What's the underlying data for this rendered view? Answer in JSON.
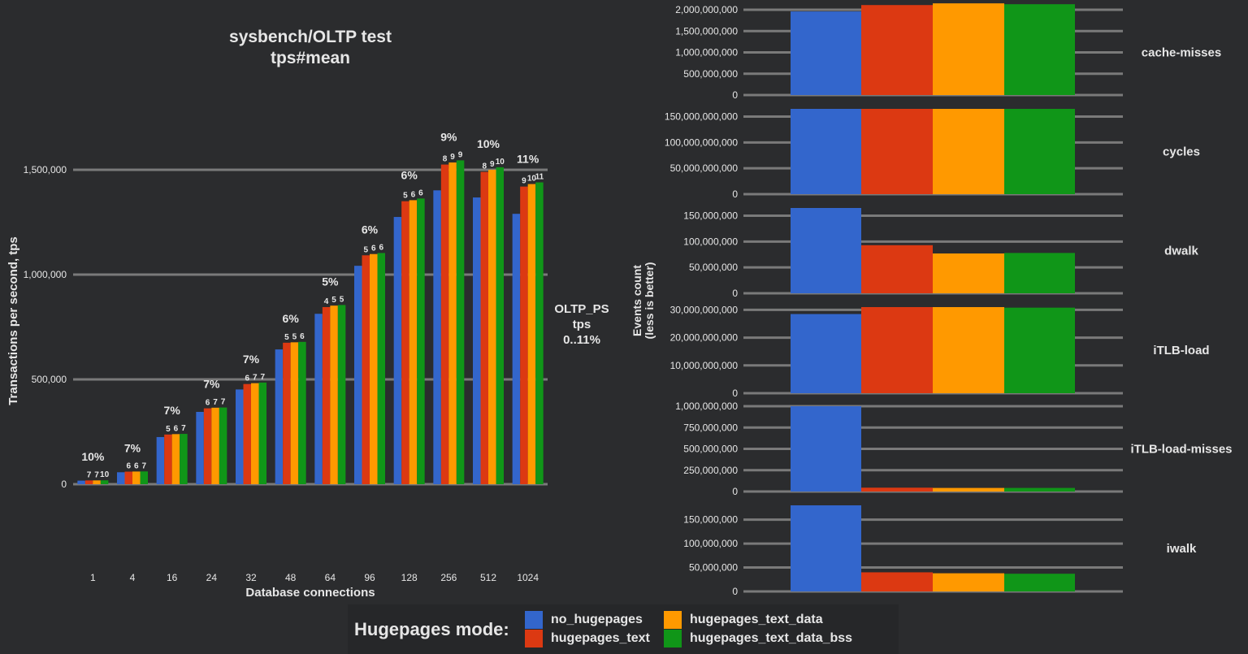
{
  "colors": {
    "background": "#2b2c2e",
    "grid": "#7a7a7a",
    "text": "#e6e6e6",
    "series": [
      "#3366cc",
      "#dc3912",
      "#ff9900",
      "#109618"
    ]
  },
  "legend": {
    "title": "Hugepages mode:",
    "items": [
      "no_hugepages",
      "hugepages_text",
      "hugepages_text_data",
      "hugepages_text_data_bss"
    ]
  },
  "chart_data": [
    {
      "type": "bar",
      "title": "sysbench/OLTP test",
      "subtitle": "tps#mean",
      "xlabel": "Database connections",
      "ylabel": "Transactions per second, tps",
      "ylim": [
        0,
        1750000
      ],
      "yticks": [
        0,
        500000,
        1000000,
        1500000
      ],
      "ytick_labels": [
        "0",
        "500,000",
        "1,000,000",
        "1,500,000"
      ],
      "facet_label": [
        "OLTP_PS",
        "tps",
        "0..11%"
      ],
      "categories": [
        "1",
        "4",
        "16",
        "24",
        "32",
        "48",
        "64",
        "96",
        "128",
        "256",
        "512",
        "1024"
      ],
      "group_labels": [
        "10%",
        "7%",
        "7%",
        "7%",
        "7%",
        "6%",
        "5%",
        "6%",
        "6%",
        "9%",
        "10%",
        "11%"
      ],
      "series": [
        {
          "name": "no_hugepages",
          "values": [
            17000,
            57000,
            225000,
            345000,
            452000,
            643000,
            813000,
            1042000,
            1275000,
            1402000,
            1368000,
            1290000
          ],
          "labels": [
            "",
            "",
            "",
            "",
            "",
            "",
            "",
            "",
            "",
            "",
            "",
            ""
          ]
        },
        {
          "name": "hugepages_text",
          "values": [
            18000,
            60000,
            237000,
            362000,
            478000,
            675000,
            845000,
            1092000,
            1350000,
            1525000,
            1490000,
            1420000
          ],
          "labels": [
            "7",
            "6",
            "5",
            "6",
            "6",
            "5",
            "4",
            "5",
            "5",
            "8",
            "8",
            "9"
          ]
        },
        {
          "name": "hugepages_text_data",
          "values": [
            18200,
            60500,
            239000,
            365000,
            482000,
            677000,
            852000,
            1098000,
            1355000,
            1535000,
            1500000,
            1432000
          ],
          "labels": [
            "7",
            "6",
            "6",
            "7",
            "7",
            "5",
            "5",
            "6",
            "6",
            "9",
            "9",
            "10"
          ]
        },
        {
          "name": "hugepages_text_data_bss",
          "values": [
            18500,
            61000,
            240000,
            366000,
            485000,
            679000,
            855000,
            1103000,
            1363000,
            1545000,
            1512000,
            1440000
          ],
          "labels": [
            "10",
            "7",
            "7",
            "7",
            "7",
            "6",
            "5",
            "6",
            "6",
            "9",
            "10",
            "11"
          ]
        }
      ]
    },
    {
      "type": "bar",
      "ylabel": "Events count\n(less is better)",
      "panels": [
        {
          "name": "cache-misses",
          "ylim": [
            0,
            2000000000
          ],
          "yticks": [
            0,
            500000000,
            1000000000,
            1500000000,
            2000000000
          ],
          "ytick_labels": [
            "0",
            "500,000,000",
            "1,000,000,000",
            "1,500,000,000",
            "2,000,000,000"
          ],
          "values": [
            1960000000,
            2110000000,
            2150000000,
            2130000000
          ]
        },
        {
          "name": "cycles",
          "ylim": [
            0,
            165000000000
          ],
          "yticks": [
            0,
            50000000000,
            100000000000,
            150000000000
          ],
          "ytick_labels": [
            "0",
            "50,000,000,000",
            "100,000,000,000",
            "150,000,000,000"
          ],
          "values": [
            165000000000,
            165000000000,
            165000000000,
            165000000000
          ]
        },
        {
          "name": "dwalk",
          "ylim": [
            0,
            165000000
          ],
          "yticks": [
            0,
            50000000,
            100000000,
            150000000
          ],
          "ytick_labels": [
            "0",
            "50,000,000",
            "100,000,000",
            "150,000,000"
          ],
          "values": [
            165000000,
            93000000,
            77000000,
            78000000
          ]
        },
        {
          "name": "iTLB-load",
          "ylim": [
            0,
            31000000000
          ],
          "yticks": [
            0,
            10000000000,
            20000000000,
            30000000000
          ],
          "ytick_labels": [
            "0",
            "10,000,000,000",
            "20,000,000,000",
            "30,000,000,000"
          ],
          "values": [
            28500000000,
            31000000000,
            31000000000,
            30800000000
          ]
        },
        {
          "name": "iTLB-load-misses",
          "ylim": [
            0,
            1000000000
          ],
          "yticks": [
            0,
            250000000,
            500000000,
            750000000,
            1000000000
          ],
          "ytick_labels": [
            "0",
            "250,000,000",
            "500,000,000",
            "750,000,000",
            "1,000,000,000"
          ],
          "values": [
            1000000000,
            45000000,
            42000000,
            42000000
          ]
        },
        {
          "name": "iwalk",
          "ylim": [
            0,
            180000000
          ],
          "yticks": [
            0,
            50000000,
            100000000,
            150000000
          ],
          "ytick_labels": [
            "0",
            "50,000,000",
            "100,000,000",
            "150,000,000"
          ],
          "values": [
            180000000,
            40000000,
            38000000,
            37000000
          ]
        }
      ]
    }
  ]
}
